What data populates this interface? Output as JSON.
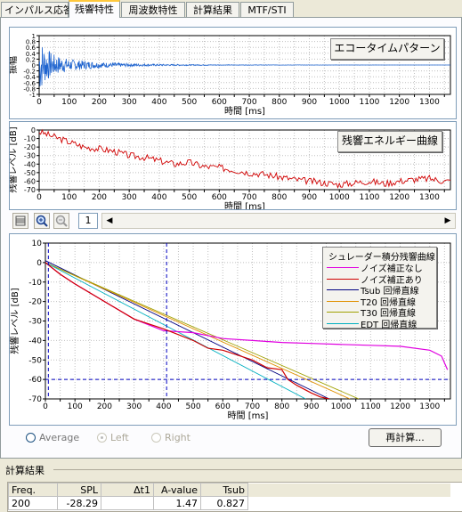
{
  "tabs": [
    {
      "label": "インパルス応答",
      "active": false
    },
    {
      "label": "残響特性",
      "active": true
    },
    {
      "label": "周波数特性",
      "active": false
    },
    {
      "label": "計算結果",
      "active": false
    },
    {
      "label": "MTF/STI",
      "active": false
    }
  ],
  "echo_panel": {
    "button_label": "エコータイムパターン",
    "ylabel": "振幅",
    "xlabel": "時間 [ms]",
    "yticks": [
      "1",
      "0.8",
      "0.6",
      "0.4",
      "0.2",
      "0",
      "-0.2",
      "-0.4",
      "-0.6",
      "-0.8",
      "-1"
    ],
    "xticks": [
      "0",
      "50",
      "100",
      "150",
      "200",
      "250",
      "300",
      "350",
      "400",
      "450",
      "500",
      "550",
      "600",
      "650",
      "700",
      "750",
      "800",
      "850",
      "900",
      "950",
      "1000",
      "1050",
      "1100",
      "1150",
      "1200",
      "1250",
      "1300",
      "1350"
    ]
  },
  "energy_panel": {
    "button_label": "残響エネルギー曲線",
    "ylabel": "残響レベル [dB]",
    "xlabel": "時間 [ms]",
    "yticks": [
      "0",
      "-10",
      "-20",
      "-30",
      "-40",
      "-50",
      "-60",
      "-70"
    ],
    "xticks": [
      "0",
      "50",
      "100",
      "150",
      "200",
      "250",
      "300",
      "350",
      "400",
      "450",
      "500",
      "550",
      "600",
      "650",
      "700",
      "750",
      "800",
      "850",
      "900",
      "950",
      "1000",
      "1050",
      "1100",
      "1150",
      "1200",
      "1250",
      "1300",
      "1350"
    ]
  },
  "toolbar": {
    "page_value": "1",
    "left_arrow": "◀",
    "right_arrow": "▶"
  },
  "decay_panel": {
    "ylabel": "残響レベル [dB]",
    "xlabel": "時間 [ms]",
    "yticks": [
      "10",
      "0",
      "-10",
      "-20",
      "-30",
      "-40",
      "-50",
      "-60",
      "-70"
    ],
    "xticks": [
      "0",
      "50",
      "100",
      "150",
      "200",
      "250",
      "300",
      "350",
      "400",
      "450",
      "500",
      "550",
      "600",
      "650",
      "700",
      "750",
      "800",
      "850",
      "900",
      "950",
      "1000",
      "1050",
      "1100",
      "1150",
      "1200",
      "1250",
      "1300",
      "1350"
    ],
    "legend": {
      "title": "シュレーダー積分残響曲線",
      "items": [
        {
          "label": "ノイズ補正なし",
          "color": "#e000e0"
        },
        {
          "label": "ノイズ補正あり",
          "color": "#d00000"
        },
        {
          "label": "Tsub 回帰直線",
          "color": "#000080"
        },
        {
          "label": "T20 回帰直線",
          "color": "#e09000"
        },
        {
          "label": "T30 回帰直線",
          "color": "#a0a000"
        },
        {
          "label": "EDT 回帰直線",
          "color": "#00b0c0"
        }
      ]
    }
  },
  "chart_data": [
    {
      "type": "line",
      "title": "",
      "xlabel": "時間 [ms]",
      "ylabel": "振幅",
      "xlim": [
        0,
        1370
      ],
      "ylim": [
        -1,
        1
      ],
      "series": [
        {
          "name": "",
          "x": [
            0,
            20,
            50,
            100,
            200,
            300,
            400,
            600,
            800,
            1000,
            1370
          ],
          "envelope": [
            1,
            0.6,
            0.35,
            0.2,
            0.1,
            0.05,
            0.03,
            0.01,
            0.005,
            0.002,
            0.001
          ]
        }
      ]
    },
    {
      "type": "line",
      "title": "",
      "xlabel": "時間 [ms]",
      "ylabel": "残響レベル [dB]",
      "xlim": [
        0,
        1370
      ],
      "ylim": [
        -70,
        0
      ],
      "series": [
        {
          "name": "",
          "x": [
            0,
            50,
            100,
            150,
            200,
            250,
            300,
            350,
            400,
            450,
            500,
            550,
            600,
            650,
            700,
            750,
            800,
            850,
            900,
            950,
            1000,
            1050,
            1100,
            1150,
            1200,
            1250,
            1300,
            1350
          ],
          "y": [
            -2,
            -8,
            -14,
            -20,
            -22,
            -25,
            -30,
            -32,
            -36,
            -40,
            -38,
            -43,
            -44,
            -47,
            -50,
            -52,
            -55,
            -58,
            -60,
            -62,
            -64,
            -62,
            -60,
            -63,
            -60,
            -58,
            -57,
            -60
          ]
        }
      ]
    },
    {
      "type": "line",
      "title": "",
      "xlabel": "時間 [ms]",
      "ylabel": "残響レベル [dB]",
      "xlim": [
        0,
        1370
      ],
      "ylim": [
        -70,
        10
      ],
      "series": [
        {
          "name": "ノイズ補正なし",
          "color": "#e000e0",
          "x": [
            0,
            50,
            100,
            200,
            300,
            400,
            500,
            600,
            700,
            800,
            900,
            1000,
            1100,
            1200,
            1300,
            1340,
            1360
          ],
          "y": [
            0,
            -6,
            -11,
            -20,
            -29,
            -35,
            -36,
            -39,
            -40,
            -41,
            -41.5,
            -42,
            -42.5,
            -43,
            -45,
            -48,
            -55
          ]
        },
        {
          "name": "ノイズ補正あり",
          "color": "#d00000",
          "x": [
            0,
            50,
            100,
            200,
            300,
            400,
            500,
            550,
            600,
            700,
            750,
            800,
            820,
            850,
            900,
            930,
            960
          ],
          "y": [
            0,
            -6,
            -11,
            -20,
            -29,
            -34,
            -40,
            -44,
            -45,
            -50,
            -54,
            -55,
            -60,
            -63,
            -67,
            -69,
            -70
          ]
        },
        {
          "name": "Tsub 回帰直線",
          "color": "#000080",
          "x": [
            0,
            960
          ],
          "y": [
            1,
            -70
          ]
        },
        {
          "name": "T20 回帰直線",
          "color": "#e09000",
          "x": [
            0,
            1030
          ],
          "y": [
            0,
            -70
          ]
        },
        {
          "name": "T30 回帰直線",
          "color": "#a0a000",
          "x": [
            0,
            1060
          ],
          "y": [
            0,
            -70
          ]
        },
        {
          "name": "EDT 回帰直線",
          "color": "#00b0c0",
          "x": [
            0,
            880
          ],
          "y": [
            0,
            -70
          ]
        }
      ],
      "markers": {
        "vertical_dashed_x": [
          10,
          410
        ],
        "horizontal_dashed_y": [
          -60
        ]
      }
    }
  ],
  "options": {
    "average_label": "Average",
    "left_label": "Left",
    "right_label": "Right",
    "recalc_label": "再計算..."
  },
  "results": {
    "section_title": "計算結果",
    "headers": [
      "Freq.",
      "SPL",
      "Δt1",
      "A-value",
      "Tsub"
    ],
    "row": [
      "200",
      "-28.29",
      "",
      "1.47",
      "0.827"
    ]
  }
}
